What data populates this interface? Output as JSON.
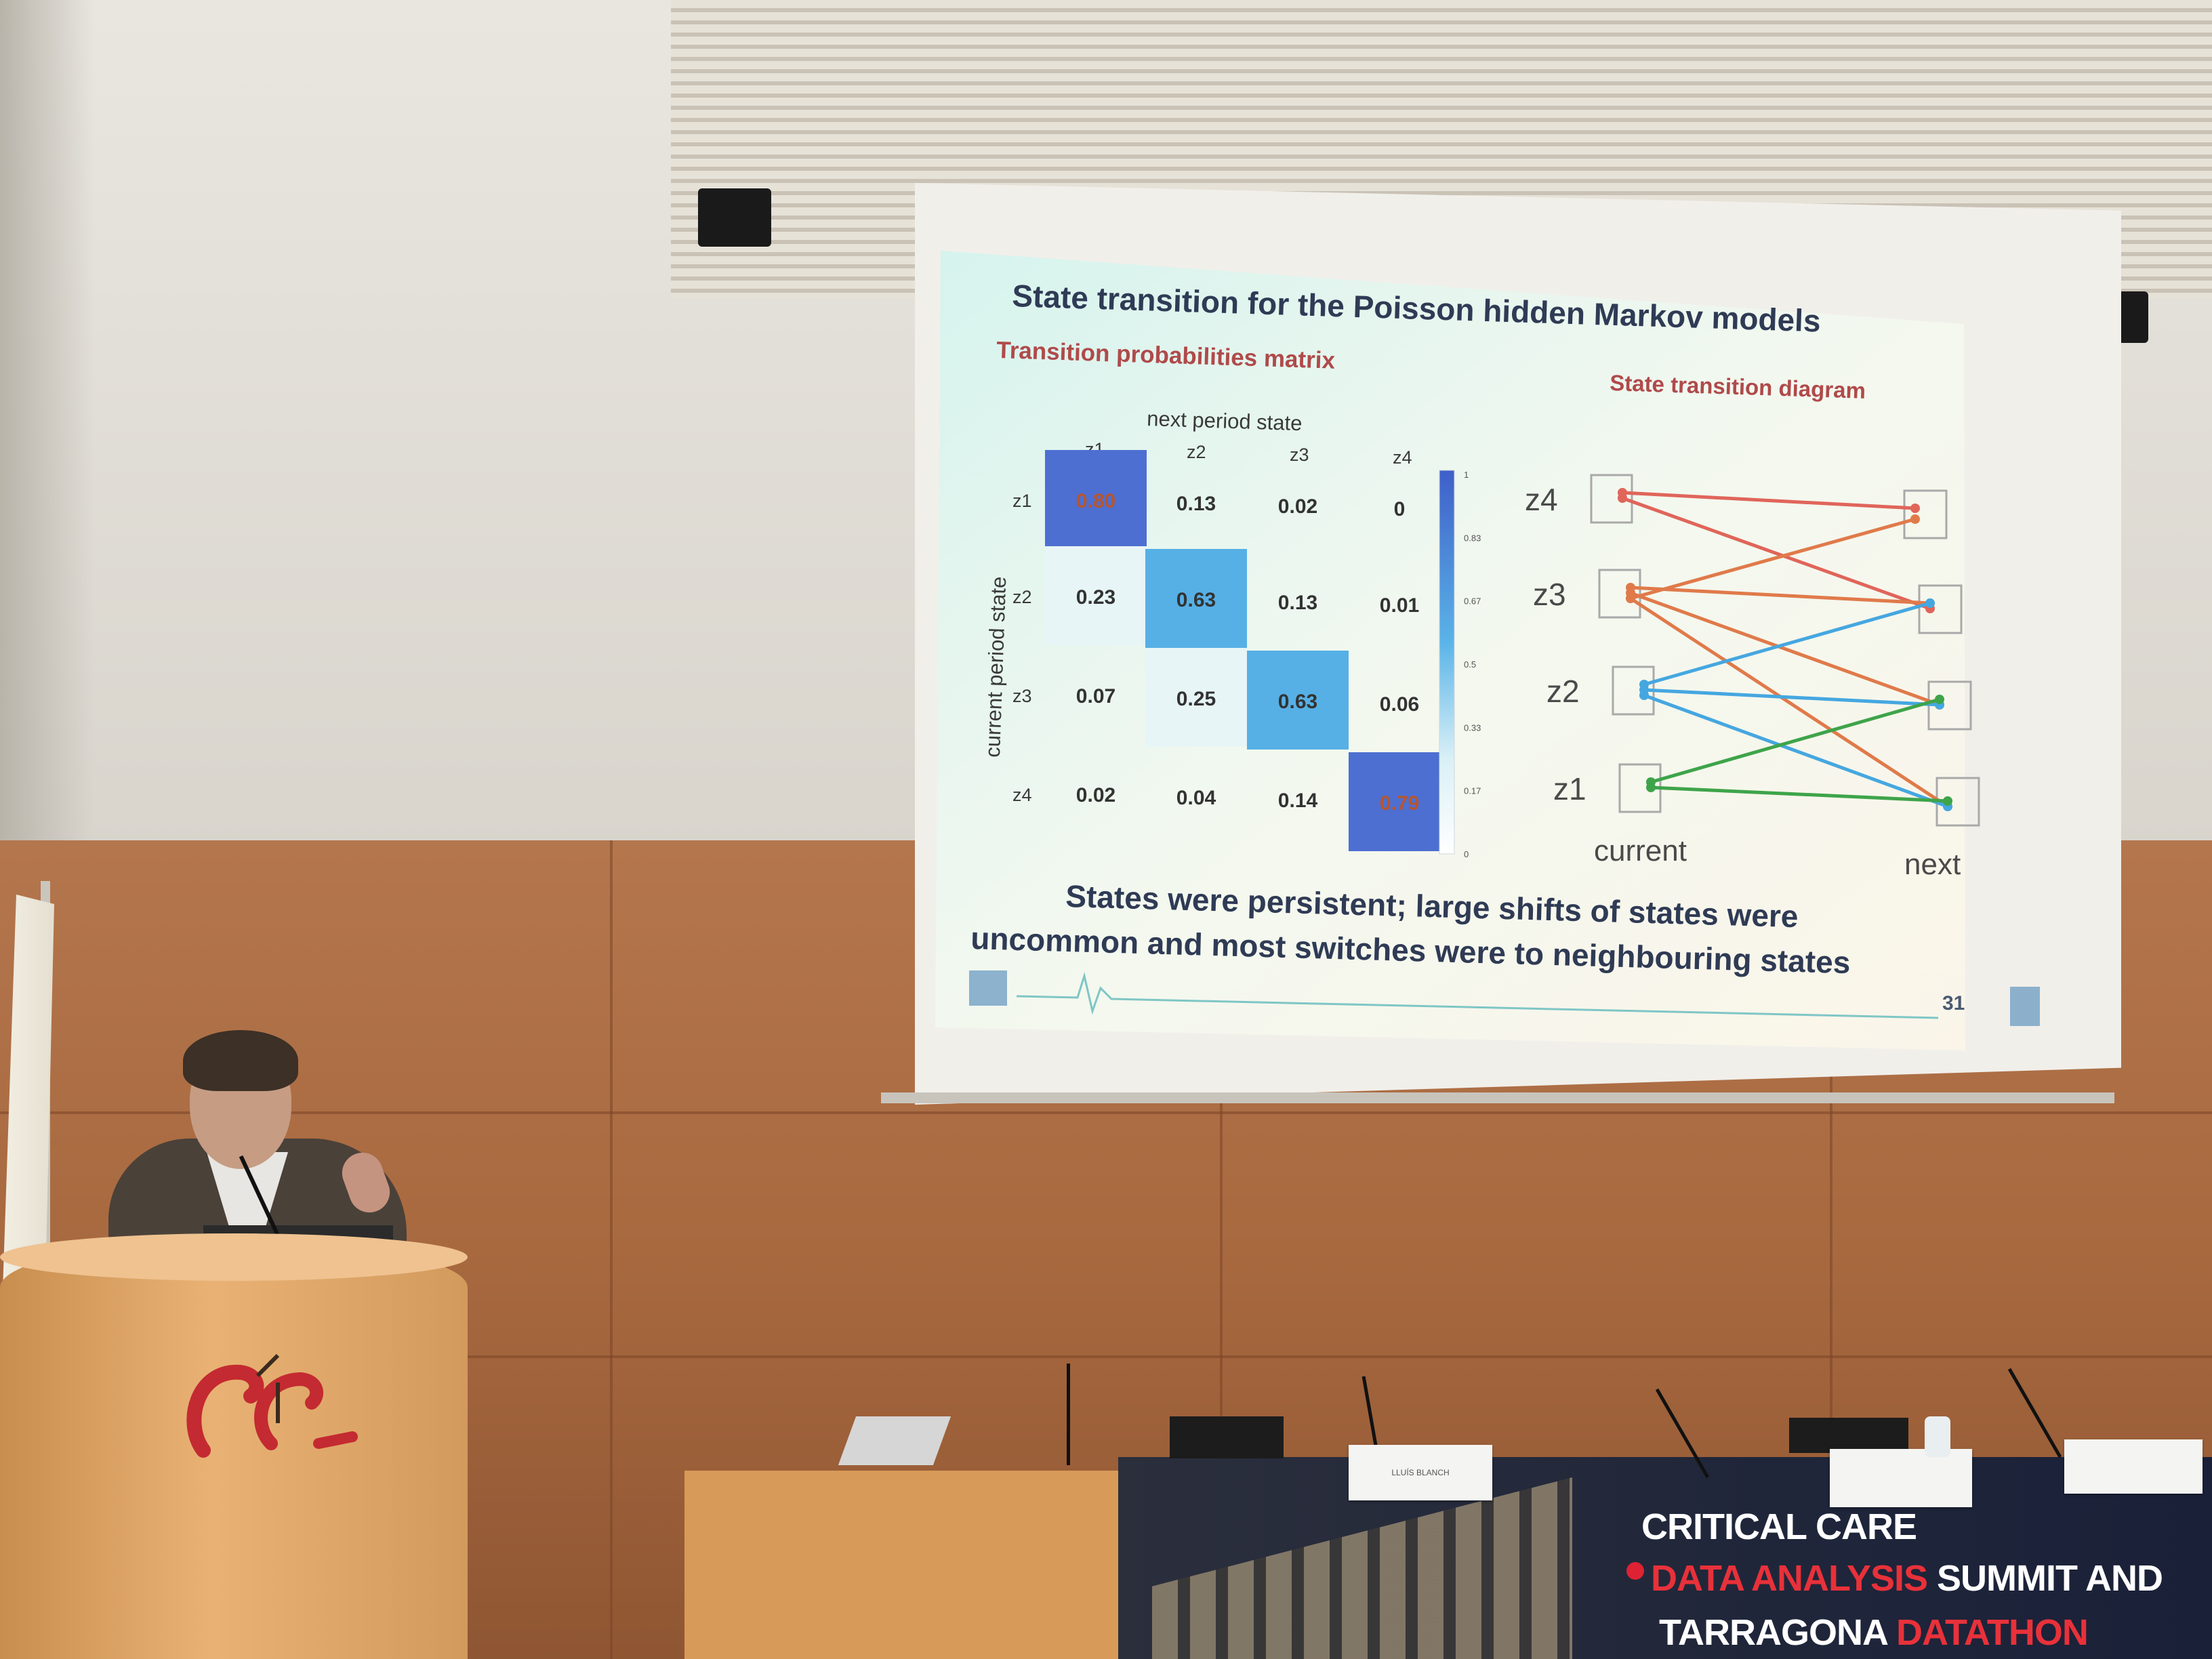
{
  "slide": {
    "title": "State transition for the Poisson hidden Markov models",
    "matrix_heading": "Transition probabilities matrix",
    "diagram_heading": "State transition diagram",
    "col_axis_label": "next period state",
    "row_axis_label": "current period state",
    "states": [
      "z1",
      "z2",
      "z3",
      "z4"
    ],
    "matrix": [
      [
        "0.80",
        "0.13",
        "0.02",
        "0"
      ],
      [
        "0.23",
        "0.63",
        "0.13",
        "0.01"
      ],
      [
        "0.07",
        "0.25",
        "0.63",
        "0.06"
      ],
      [
        "0.02",
        "0.04",
        "0.14",
        "0.79"
      ]
    ],
    "colorbar_ticks": [
      "1",
      "0.83",
      "0.67",
      "0.5",
      "0.33",
      "0.17",
      "0"
    ],
    "diagram_states_top_to_bottom": [
      "z4",
      "z3",
      "z2",
      "z1"
    ],
    "diagram_left_label": "current",
    "diagram_right_label": "next",
    "conclusion_line1": "States were persistent; large shifts of states were",
    "conclusion_line2": "uncommon and most switches were to neighbouring states",
    "footer_badge": "31"
  },
  "banner": {
    "line1": "CRITICAL CARE",
    "line2_red": "DATA ANALYSIS",
    "line2_white": " SUMMIT AND",
    "line3_white": "TARRAGONA ",
    "line3_red": "DATATHON"
  },
  "nameplates": [
    "LLUÍS BLANCH"
  ],
  "colors": {
    "heading_red": "#b04a4a",
    "title": "#2f3b55",
    "cell_high": "#4d6fd1",
    "cell_mid": "#56b0e6",
    "z4_line": "#e0655a",
    "z3_line": "#e07a4a",
    "z2_line": "#45a7e0",
    "z1_line": "#3ea44a",
    "banner_red": "#e8313a"
  }
}
